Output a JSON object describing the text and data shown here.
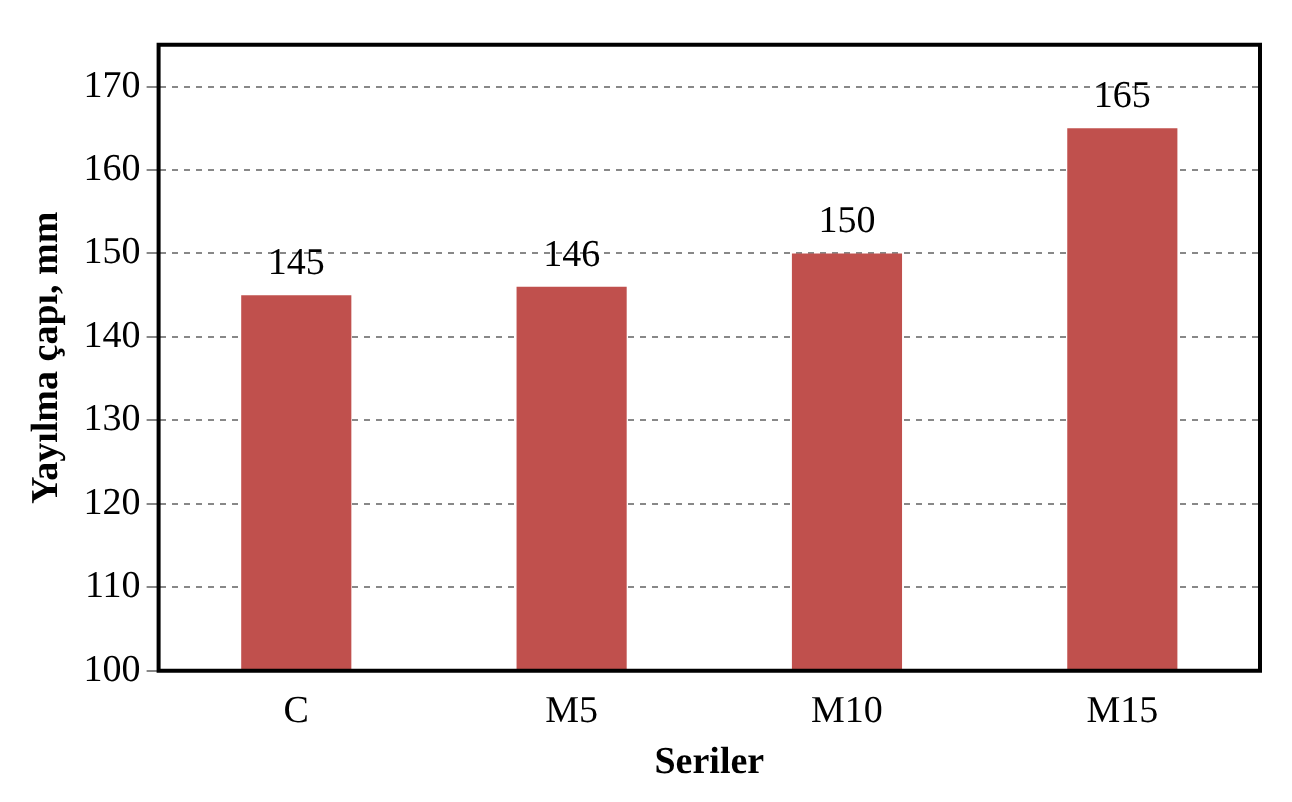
{
  "chart_data": {
    "type": "bar",
    "xlabel": "Seriler",
    "ylabel": "Yayılma çapı, mm",
    "categories": [
      "C",
      "M5",
      "M10",
      "M15"
    ],
    "values": [
      145,
      146,
      150,
      165
    ],
    "color": "#c0504d",
    "ylim": [
      100,
      175
    ],
    "yticks": [
      100,
      110,
      120,
      130,
      140,
      150,
      160,
      170
    ],
    "grid": "y",
    "data_labels": true
  }
}
